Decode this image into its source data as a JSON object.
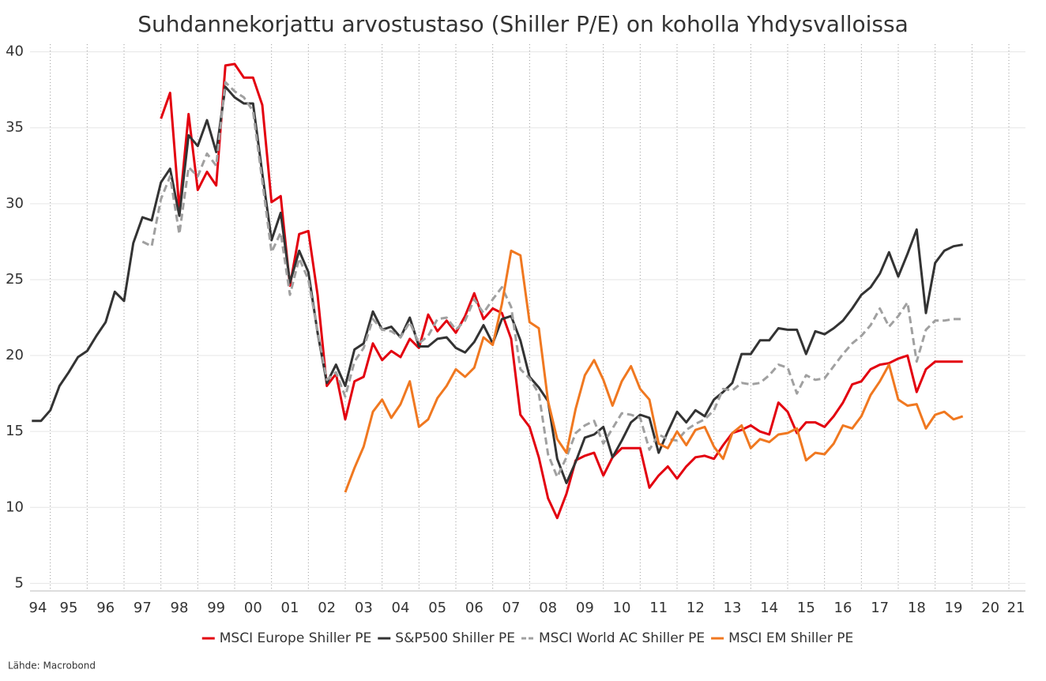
{
  "chart_data": {
    "type": "line",
    "title": "Suhdannekorjattu arvostustaso (Shiller P/E) on koholla Yhdysvalloissa",
    "source": "Lähde: Macrobond",
    "x": [
      1994.5,
      1994.75,
      1995,
      1995.25,
      1995.5,
      1995.75,
      1996,
      1996.25,
      1996.5,
      1996.75,
      1997,
      1997.25,
      1997.5,
      1997.75,
      1998,
      1998.25,
      1998.5,
      1998.75,
      1999,
      1999.25,
      1999.5,
      1999.75,
      2000,
      2000.25,
      2000.5,
      2000.75,
      2001,
      2001.25,
      2001.5,
      2001.75,
      2002,
      2002.25,
      2002.5,
      2002.75,
      2003,
      2003.25,
      2003.5,
      2003.75,
      2004,
      2004.25,
      2004.5,
      2004.75,
      2005,
      2005.25,
      2005.5,
      2005.75,
      2006,
      2006.25,
      2006.5,
      2006.75,
      2007,
      2007.25,
      2007.5,
      2007.75,
      2008,
      2008.25,
      2008.5,
      2008.75,
      2009,
      2009.25,
      2009.5,
      2009.75,
      2010,
      2010.25,
      2010.5,
      2010.75,
      2011,
      2011.25,
      2011.5,
      2011.75,
      2012,
      2012.25,
      2012.5,
      2012.75,
      2013,
      2013.25,
      2013.5,
      2013.75,
      2014,
      2014.25,
      2014.5,
      2014.75,
      2015,
      2015.25,
      2015.5,
      2015.75,
      2016,
      2016.25,
      2016.5,
      2016.75,
      2017,
      2017.25,
      2017.5,
      2017.75,
      2018,
      2018.25,
      2018.5,
      2018.75,
      2019,
      2019.25,
      2019.5,
      2019.75
    ],
    "series": [
      {
        "name": "MSCI Europe Shiller PE",
        "color": "#e3000f",
        "dashed": false,
        "values": [
          null,
          null,
          null,
          null,
          null,
          null,
          null,
          null,
          null,
          null,
          null,
          null,
          null,
          null,
          35.6,
          37.3,
          29.6,
          35.9,
          30.9,
          32.1,
          31.2,
          39.1,
          39.2,
          38.3,
          38.3,
          36.5,
          30.1,
          30.5,
          24.6,
          28.0,
          28.2,
          24.0,
          18.0,
          18.8,
          15.8,
          18.3,
          18.6,
          20.8,
          19.7,
          20.3,
          19.9,
          21.1,
          20.5,
          22.7,
          21.6,
          22.3,
          21.5,
          22.6,
          24.1,
          22.4,
          23.1,
          22.8,
          21.1,
          16.1,
          15.3,
          13.3,
          10.6,
          9.3,
          10.9,
          13.1,
          13.4,
          13.6,
          12.1,
          13.3,
          13.9,
          13.9,
          13.9,
          11.3,
          12.1,
          12.7,
          11.9,
          12.7,
          13.3,
          13.4,
          13.2,
          14.1,
          14.9,
          15.1,
          15.4,
          15.0,
          14.8,
          16.9,
          16.3,
          14.9,
          15.6,
          15.6,
          15.3,
          16.0,
          16.9,
          18.1,
          18.3,
          19.1,
          19.4,
          19.5,
          19.8,
          20.0,
          17.6,
          19.1,
          19.6,
          19.6,
          19.6,
          19.6
        ]
      },
      {
        "name": "S&P500 Shiller PE",
        "color": "#333333",
        "dashed": false,
        "values": [
          15.7,
          15.7,
          16.4,
          18.0,
          18.9,
          19.9,
          20.3,
          21.3,
          22.2,
          24.2,
          23.6,
          27.4,
          29.1,
          28.9,
          31.4,
          32.3,
          29.2,
          34.5,
          33.8,
          35.5,
          33.4,
          37.7,
          37.0,
          36.6,
          36.6,
          32.0,
          27.6,
          29.4,
          24.8,
          26.9,
          25.5,
          21.5,
          18.2,
          19.4,
          18.0,
          20.4,
          20.8,
          22.9,
          21.7,
          21.9,
          21.2,
          22.5,
          20.6,
          20.6,
          21.1,
          21.2,
          20.5,
          20.2,
          20.9,
          22.0,
          20.8,
          22.4,
          22.6,
          21.0,
          18.6,
          17.9,
          17.0,
          13.2,
          11.6,
          13.0,
          14.6,
          14.8,
          15.3,
          13.3,
          14.4,
          15.6,
          16.1,
          15.9,
          13.6,
          15.0,
          16.3,
          15.6,
          16.4,
          16.0,
          17.1,
          17.6,
          18.2,
          20.1,
          20.1,
          21.0,
          21.0,
          21.8,
          21.7,
          21.7,
          20.1,
          21.6,
          21.4,
          21.8,
          22.3,
          23.1,
          24.0,
          24.5,
          25.4,
          26.8,
          25.2,
          26.7,
          28.3,
          22.8,
          26.1,
          26.9,
          27.2,
          27.3
        ]
      },
      {
        "name": "MSCI World AC Shiller PE",
        "color": "#a0a0a0",
        "dashed": true,
        "values": [
          null,
          null,
          null,
          null,
          null,
          null,
          null,
          null,
          null,
          null,
          null,
          null,
          27.5,
          27.2,
          30.3,
          31.8,
          28.0,
          32.4,
          31.8,
          33.3,
          32.5,
          38.0,
          37.4,
          37.0,
          36.1,
          31.5,
          26.8,
          28.1,
          24.0,
          26.4,
          25.0,
          21.6,
          18.4,
          18.9,
          17.3,
          19.6,
          20.5,
          22.4,
          21.7,
          21.6,
          21.2,
          22.2,
          20.8,
          21.3,
          22.4,
          22.5,
          21.7,
          22.3,
          23.7,
          22.8,
          23.7,
          24.5,
          23.2,
          19.1,
          18.5,
          17.5,
          13.5,
          12.0,
          13.3,
          14.9,
          15.4,
          15.7,
          14.2,
          15.2,
          16.2,
          16.1,
          15.9,
          13.8,
          14.8,
          14.5,
          14.4,
          15.1,
          15.5,
          15.8,
          16.4,
          17.8,
          17.7,
          18.2,
          18.1,
          18.2,
          18.7,
          19.4,
          19.2,
          17.5,
          18.7,
          18.4,
          18.5,
          19.3,
          20.1,
          20.8,
          21.3,
          22.0,
          23.1,
          21.9,
          22.6,
          23.5,
          19.6,
          21.7,
          22.3,
          22.3,
          22.4,
          22.4
        ]
      },
      {
        "name": "MSCI EM Shiller PE",
        "color": "#f07820",
        "dashed": false,
        "values": [
          null,
          null,
          null,
          null,
          null,
          null,
          null,
          null,
          null,
          null,
          null,
          null,
          null,
          null,
          null,
          null,
          null,
          null,
          null,
          null,
          null,
          null,
          null,
          null,
          null,
          null,
          null,
          null,
          null,
          null,
          null,
          null,
          null,
          null,
          11.0,
          12.6,
          14.0,
          16.3,
          17.1,
          15.9,
          16.8,
          18.3,
          15.3,
          15.8,
          17.2,
          18.0,
          19.1,
          18.6,
          19.2,
          21.2,
          20.7,
          23.4,
          26.9,
          26.6,
          22.2,
          21.8,
          17.0,
          14.5,
          13.6,
          16.5,
          18.7,
          19.7,
          18.4,
          16.7,
          18.3,
          19.3,
          17.8,
          17.1,
          14.2,
          13.9,
          15.0,
          14.1,
          15.1,
          15.3,
          14.0,
          13.2,
          14.9,
          15.4,
          13.9,
          14.5,
          14.3,
          14.8,
          14.9,
          15.2,
          13.1,
          13.6,
          13.5,
          14.2,
          15.4,
          15.2,
          16.0,
          17.4,
          18.3,
          19.4,
          17.1,
          16.7,
          16.8,
          15.2,
          16.1,
          16.3,
          15.8,
          16.0
        ]
      }
    ],
    "xlim": [
      1994.45,
      2021.45
    ],
    "xticks": [
      {
        "value": 1994.5,
        "label": "94"
      },
      {
        "value": 1995.5,
        "label": "95"
      },
      {
        "value": 1996.5,
        "label": "96"
      },
      {
        "value": 1997.5,
        "label": "97"
      },
      {
        "value": 1998.5,
        "label": "98"
      },
      {
        "value": 1999.5,
        "label": "99"
      },
      {
        "value": 2000.5,
        "label": "00"
      },
      {
        "value": 2001.5,
        "label": "01"
      },
      {
        "value": 2002.5,
        "label": "02"
      },
      {
        "value": 2003.5,
        "label": "03"
      },
      {
        "value": 2004.5,
        "label": "04"
      },
      {
        "value": 2005.5,
        "label": "05"
      },
      {
        "value": 2006.5,
        "label": "06"
      },
      {
        "value": 2007.5,
        "label": "07"
      },
      {
        "value": 2008.5,
        "label": "08"
      },
      {
        "value": 2009.5,
        "label": "09"
      },
      {
        "value": 2010.5,
        "label": "10"
      },
      {
        "value": 2011.5,
        "label": "11"
      },
      {
        "value": 2012.5,
        "label": "12"
      },
      {
        "value": 2013.5,
        "label": "13"
      },
      {
        "value": 2014.5,
        "label": "14"
      },
      {
        "value": 2015.5,
        "label": "15"
      },
      {
        "value": 2016.5,
        "label": "16"
      },
      {
        "value": 2017.5,
        "label": "17"
      },
      {
        "value": 2018.5,
        "label": "18"
      },
      {
        "value": 2019.5,
        "label": "19"
      },
      {
        "value": 2020.5,
        "label": "20"
      },
      {
        "value": 2021.5,
        "label": "21"
      }
    ],
    "ylim": [
      4.5,
      40.5
    ],
    "yticks": [
      5,
      10,
      15,
      20,
      25,
      30,
      35,
      40
    ],
    "grid": true,
    "legend": "bottom"
  }
}
